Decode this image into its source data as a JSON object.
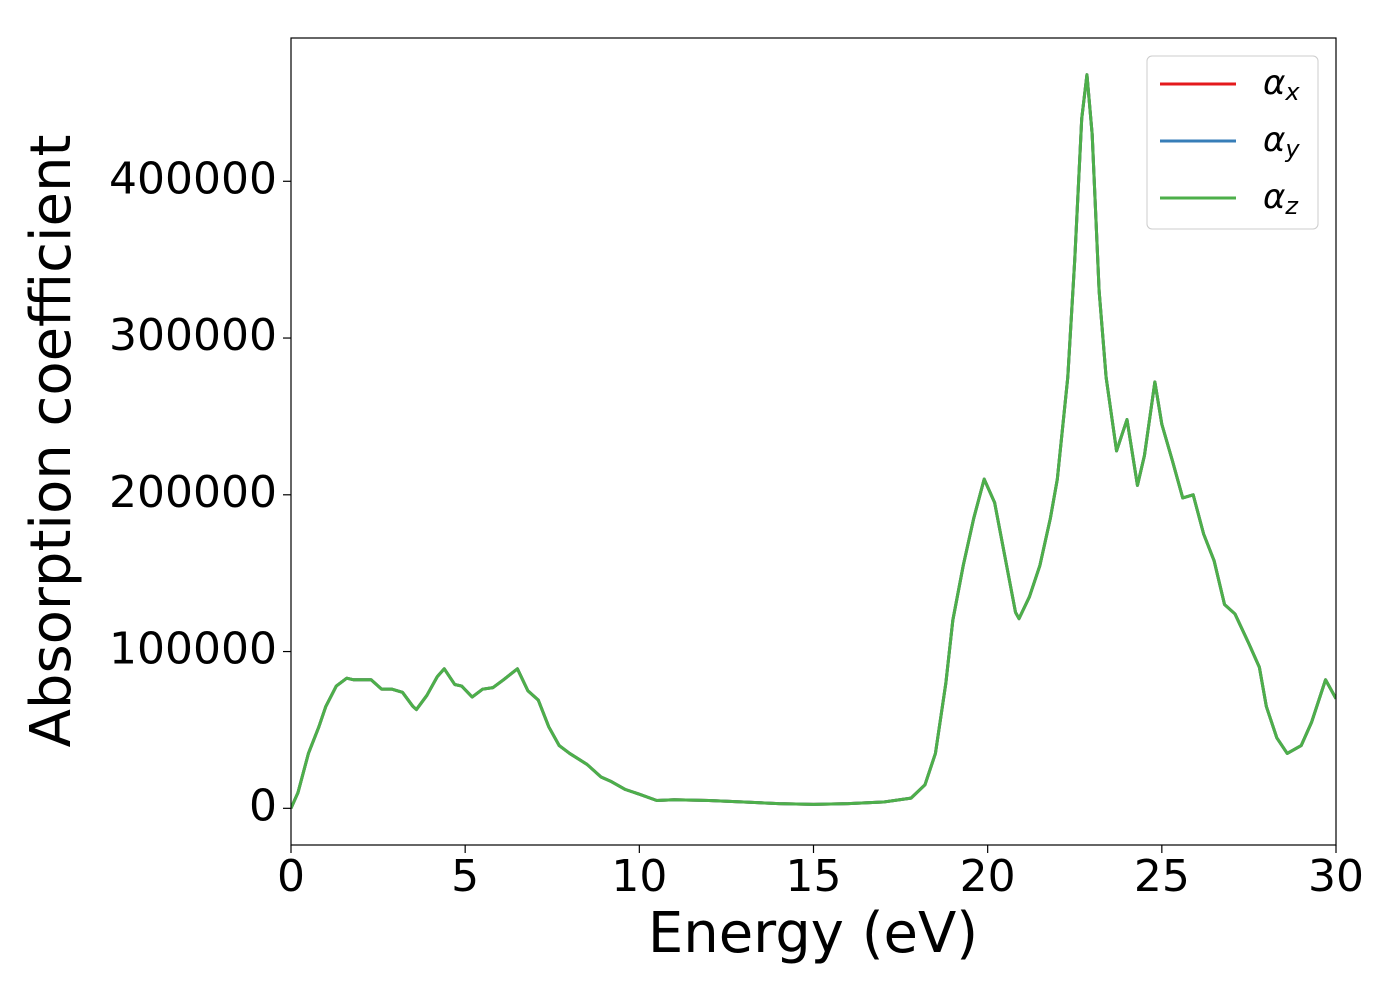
{
  "chart_data": {
    "type": "line",
    "x_label": "Energy (eV)",
    "y_label": "Absorption coefficient",
    "x": [
      0,
      0.2,
      0.5,
      0.8,
      1.0,
      1.3,
      1.6,
      1.8,
      2.0,
      2.3,
      2.6,
      2.9,
      3.2,
      3.5,
      3.6,
      3.9,
      4.2,
      4.4,
      4.7,
      4.9,
      5.2,
      5.5,
      5.8,
      6.1,
      6.5,
      6.8,
      7.1,
      7.4,
      7.7,
      8.0,
      8.5,
      8.9,
      9.2,
      9.6,
      10.0,
      10.5,
      11.0,
      12.0,
      13.0,
      14.0,
      15.0,
      16.0,
      17.0,
      17.8,
      18.2,
      18.5,
      18.8,
      19.0,
      19.3,
      19.6,
      19.9,
      20.2,
      20.5,
      20.8,
      20.9,
      21.2,
      21.5,
      21.8,
      22.0,
      22.3,
      22.5,
      22.7,
      22.85,
      23.0,
      23.2,
      23.4,
      23.7,
      24.0,
      24.3,
      24.5,
      24.8,
      25.0,
      25.3,
      25.6,
      25.9,
      26.2,
      26.5,
      26.8,
      27.1,
      27.5,
      27.8,
      28.0,
      28.3,
      28.6,
      29.0,
      29.3,
      29.7,
      30.0
    ],
    "series": [
      {
        "name": "αx",
        "color": "#e41a1c",
        "values": [
          0,
          10000,
          35000,
          52000,
          65000,
          78000,
          83000,
          82000,
          82000,
          82000,
          76000,
          76000,
          74000,
          65000,
          63000,
          72000,
          84000,
          89000,
          79000,
          78000,
          71000,
          76000,
          77000,
          82000,
          89000,
          75000,
          69000,
          52000,
          40000,
          35000,
          28000,
          20000,
          17000,
          12000,
          9000,
          5000,
          5500,
          5000,
          4000,
          3000,
          2500,
          3000,
          4000,
          6500,
          15000,
          35000,
          80000,
          120000,
          155000,
          185000,
          210000,
          195000,
          160000,
          125000,
          121000,
          135000,
          155000,
          185000,
          210000,
          275000,
          350000,
          440000,
          468000,
          430000,
          330000,
          275000,
          228000,
          248000,
          206000,
          225000,
          272000,
          245000,
          222000,
          198000,
          200000,
          175000,
          158000,
          130000,
          124000,
          105000,
          90000,
          65000,
          45000,
          35000,
          40000,
          55000,
          82000,
          70000
        ]
      },
      {
        "name": "αy",
        "color": "#377eb8",
        "values": [
          0,
          10000,
          35000,
          52000,
          65000,
          78000,
          83000,
          82000,
          82000,
          82000,
          76000,
          76000,
          74000,
          65000,
          63000,
          72000,
          84000,
          89000,
          79000,
          78000,
          71000,
          76000,
          77000,
          82000,
          89000,
          75000,
          69000,
          52000,
          40000,
          35000,
          28000,
          20000,
          17000,
          12000,
          9000,
          5000,
          5500,
          5000,
          4000,
          3000,
          2500,
          3000,
          4000,
          6500,
          15000,
          35000,
          80000,
          120000,
          155000,
          185000,
          210000,
          195000,
          160000,
          125000,
          121000,
          135000,
          155000,
          185000,
          210000,
          275000,
          350000,
          440000,
          468000,
          430000,
          330000,
          275000,
          228000,
          248000,
          206000,
          225000,
          272000,
          245000,
          222000,
          198000,
          200000,
          175000,
          158000,
          130000,
          124000,
          105000,
          90000,
          65000,
          45000,
          35000,
          40000,
          55000,
          82000,
          70000
        ]
      },
      {
        "name": "αz",
        "color": "#4daf4a",
        "values": [
          0,
          10000,
          35000,
          52000,
          65000,
          78000,
          83000,
          82000,
          82000,
          82000,
          76000,
          76000,
          74000,
          65000,
          63000,
          72000,
          84000,
          89000,
          79000,
          78000,
          71000,
          76000,
          77000,
          82000,
          89000,
          75000,
          69000,
          52000,
          40000,
          35000,
          28000,
          20000,
          17000,
          12000,
          9000,
          5000,
          5500,
          5000,
          4000,
          3000,
          2500,
          3000,
          4000,
          6500,
          15000,
          35000,
          80000,
          120000,
          155000,
          185000,
          210000,
          195000,
          160000,
          125000,
          121000,
          135000,
          155000,
          185000,
          210000,
          275000,
          350000,
          440000,
          468000,
          430000,
          330000,
          275000,
          228000,
          248000,
          206000,
          225000,
          272000,
          245000,
          222000,
          198000,
          200000,
          175000,
          158000,
          130000,
          124000,
          105000,
          90000,
          65000,
          45000,
          35000,
          40000,
          55000,
          82000,
          70000
        ]
      }
    ],
    "xlim": [
      0,
      30
    ],
    "xticks": [
      0,
      5,
      10,
      15,
      20,
      25,
      30
    ],
    "ylim": [
      -23400,
      491400
    ],
    "yticks": [
      0,
      100000,
      200000,
      300000,
      400000
    ],
    "grid": false,
    "legend": "upper right"
  }
}
